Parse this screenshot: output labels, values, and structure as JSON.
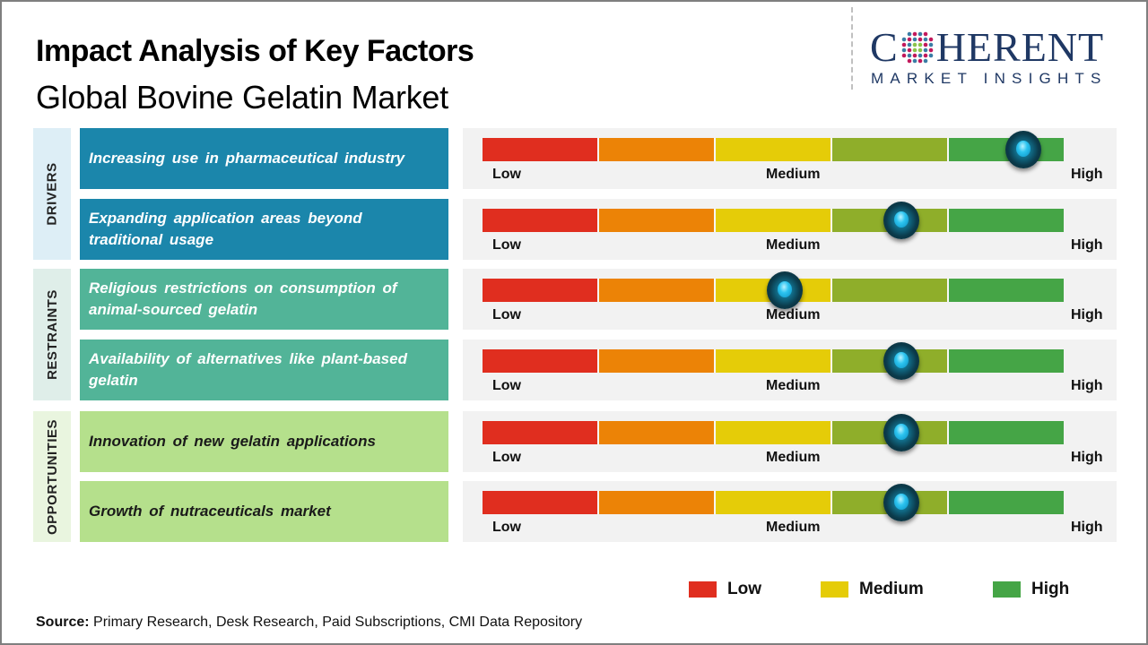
{
  "header": {
    "title": "Impact Analysis of Key Factors",
    "subtitle": "Global Bovine Gelatin Market"
  },
  "logo": {
    "main_prefix": "C",
    "main_suffix": "HERENT",
    "sub": "MARKET INSIGHTS"
  },
  "colors": {
    "drivers_category_bg": "#ddeef6",
    "drivers_factor_bg": "#1b86ab",
    "restraints_category_bg": "#dfeee9",
    "restraints_factor_bg": "#52b498",
    "opportunities_category_bg": "#e9f5df",
    "opportunities_factor_bg": "#b5e08c",
    "segment_colors": [
      "#e02e1f",
      "#ec8306",
      "#e5cc08",
      "#8fae2a",
      "#45a546"
    ]
  },
  "chart_data": {
    "type": "table",
    "title": "Impact Analysis of Key Factors",
    "subtitle": "Global Bovine Gelatin Market",
    "scale_labels": {
      "low": "Low",
      "medium": "Medium",
      "high": "High"
    },
    "scale_range": [
      0,
      1
    ],
    "categories": [
      {
        "name": "DRIVERS",
        "factors": [
          {
            "label": "Increasing use in pharmaceutical  industry",
            "impact": 0.93
          },
          {
            "label": "Expanding application areas beyond traditional usage",
            "impact": 0.72
          }
        ]
      },
      {
        "name": "RESTRAINTS",
        "factors": [
          {
            "label": "Religious restrictions on consumption of animal-sourced  gelatin",
            "impact": 0.52
          },
          {
            "label": "Availability of alternatives  like plant-based gelatin",
            "impact": 0.72
          }
        ]
      },
      {
        "name": "OPPORTUNITIES",
        "factors": [
          {
            "label": "Innovation of new gelatin applications",
            "impact": 0.72
          },
          {
            "label": "Growth of nutraceuticals  market",
            "impact": 0.72
          }
        ]
      }
    ],
    "legend": [
      {
        "label": "Low",
        "color": "#e02e1f"
      },
      {
        "label": "Medium",
        "color": "#e5cc08"
      },
      {
        "label": "High",
        "color": "#45a546"
      }
    ],
    "legend_position": "bottom-right"
  },
  "footer": {
    "source_label": "Source:",
    "source_text": " Primary Research, Desk Research, Paid Subscriptions, CMI Data Repository"
  }
}
